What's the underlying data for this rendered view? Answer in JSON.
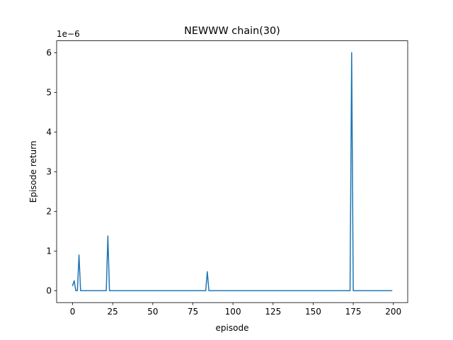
{
  "chart_data": {
    "type": "line",
    "title": "NEWWW chain(30)",
    "xlabel": "episode",
    "ylabel": "Episode return",
    "y_offset_text": "1e−6",
    "y_scale_factor": 1e-06,
    "xlim": [
      -9.95,
      208.95
    ],
    "ylim": [
      -0.3,
      6.3
    ],
    "x_ticks": [
      0,
      25,
      50,
      75,
      100,
      125,
      150,
      175,
      200
    ],
    "y_ticks": [
      0,
      1,
      2,
      3,
      4,
      5,
      6
    ],
    "x_tick_labels": [
      "0",
      "25",
      "50",
      "75",
      "100",
      "125",
      "150",
      "175",
      "200"
    ],
    "y_tick_labels": [
      "0",
      "1",
      "2",
      "3",
      "4",
      "5",
      "6"
    ],
    "grid": false,
    "legend": "none",
    "series": [
      {
        "color": "#1f77b4",
        "x": [
          0,
          1,
          2,
          3,
          4,
          5,
          20,
          21,
          22,
          23,
          83,
          84,
          85,
          173,
          174,
          175,
          199
        ],
        "y": [
          0.13,
          0.25,
          0.0,
          0.0,
          0.9,
          0.0,
          0.0,
          0.0,
          1.38,
          0.0,
          0.0,
          0.48,
          0.0,
          0.0,
          6.0,
          0.0,
          0.0
        ]
      }
    ]
  }
}
